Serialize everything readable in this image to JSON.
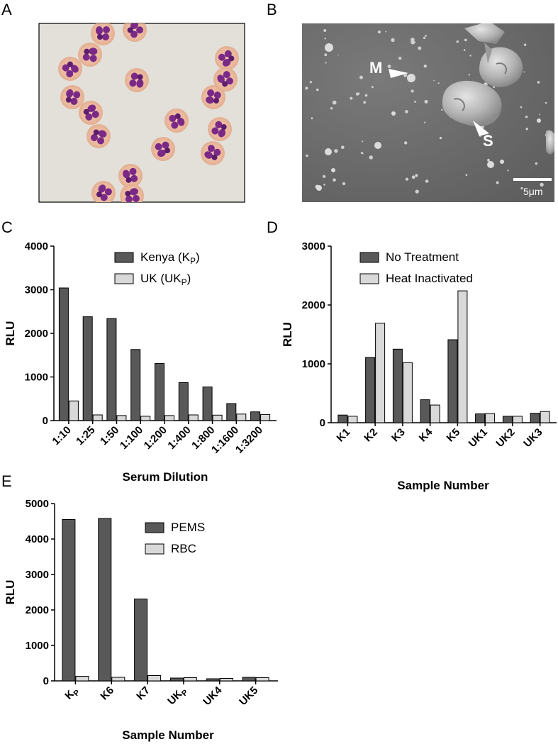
{
  "panels": {
    "A": {
      "letter": "A"
    },
    "B": {
      "letter": "B",
      "labels": {
        "m": "M",
        "s": "S"
      },
      "scale_bar": "5μm"
    }
  },
  "colors": {
    "dark_bar": "#595959",
    "light_bar": "#d9d9d9",
    "stain_purple": "#7a2a86",
    "sem_gray": "#6e6e6e"
  },
  "chart_data": [
    {
      "panel": "C",
      "type": "bar",
      "ylabel": "RLU",
      "xlabel": "Serum Dilution",
      "ylim": [
        0,
        4000
      ],
      "yticks": [
        "0",
        "1000",
        "2000",
        "3000",
        "4000"
      ],
      "categories": [
        "1:10",
        "1:25",
        "1:50",
        "1:100",
        "1:200",
        "1:400",
        "1:800",
        "1:1600",
        "1:3200"
      ],
      "series": [
        {
          "name": "Kenya (K",
          "sub": "P",
          "suffix": ")",
          "values": [
            3040,
            2380,
            2340,
            1630,
            1310,
            870,
            770,
            390,
            200
          ]
        },
        {
          "name": "UK (UK",
          "sub": "P",
          "suffix": ")",
          "values": [
            450,
            130,
            115,
            100,
            115,
            130,
            125,
            150,
            140
          ]
        }
      ],
      "legend": "top-right"
    },
    {
      "panel": "D",
      "type": "bar",
      "ylabel": "RLU",
      "xlabel": "Sample Number",
      "ylim": [
        0,
        3000
      ],
      "yticks": [
        "0",
        "1000",
        "2000",
        "3000"
      ],
      "categories": [
        "K1",
        "K2",
        "K3",
        "K4",
        "K5",
        "UK1",
        "UK2",
        "UK3"
      ],
      "series": [
        {
          "name": "No Treatment",
          "values": [
            130,
            1110,
            1250,
            390,
            1410,
            150,
            110,
            160
          ]
        },
        {
          "name": "Heat Inactivated",
          "values": [
            110,
            1690,
            1020,
            300,
            2240,
            155,
            110,
            190
          ]
        }
      ],
      "legend": "top-right"
    },
    {
      "panel": "E",
      "type": "bar",
      "ylabel": "RLU",
      "xlabel": "Sample Number",
      "ylim": [
        0,
        5000
      ],
      "yticks": [
        "0",
        "1000",
        "2000",
        "3000",
        "4000",
        "5000"
      ],
      "categories": [
        "K",
        "K6",
        "K7",
        "UK",
        "UK4",
        "UK5"
      ],
      "category_subscripts": [
        "P",
        "",
        "",
        "P",
        "",
        ""
      ],
      "series": [
        {
          "name": "PEMS",
          "values": [
            4550,
            4580,
            2310,
            80,
            60,
            100
          ]
        },
        {
          "name": "RBC",
          "values": [
            130,
            100,
            150,
            90,
            70,
            90
          ]
        }
      ],
      "legend": "top-right"
    }
  ]
}
